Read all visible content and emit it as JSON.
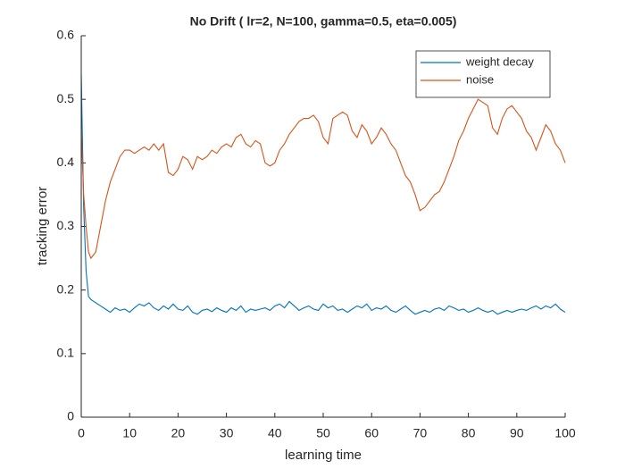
{
  "chart_data": {
    "type": "line",
    "title": "No Drift ( lr=2, N=100, gamma=0.5, eta=0.005)",
    "xlabel": "learning time",
    "ylabel": "tracking error",
    "x": [
      0,
      0.5,
      1,
      1.5,
      2,
      3,
      4,
      5,
      6,
      7,
      8,
      9,
      10,
      11,
      12,
      13,
      14,
      15,
      16,
      17,
      18,
      19,
      20,
      21,
      22,
      23,
      24,
      25,
      26,
      27,
      28,
      29,
      30,
      31,
      32,
      33,
      34,
      35,
      36,
      37,
      38,
      39,
      40,
      41,
      42,
      43,
      44,
      45,
      46,
      47,
      48,
      49,
      50,
      51,
      52,
      53,
      54,
      55,
      56,
      57,
      58,
      59,
      60,
      61,
      62,
      63,
      64,
      65,
      66,
      67,
      68,
      69,
      70,
      71,
      72,
      73,
      74,
      75,
      76,
      77,
      78,
      79,
      80,
      81,
      82,
      83,
      84,
      85,
      86,
      87,
      88,
      89,
      90,
      91,
      92,
      93,
      94,
      95,
      96,
      97,
      98,
      99,
      100
    ],
    "series": [
      {
        "name": "weight decay",
        "color": "#0072bd",
        "values": [
          0.54,
          0.33,
          0.23,
          0.19,
          0.185,
          0.18,
          0.175,
          0.17,
          0.165,
          0.172,
          0.168,
          0.17,
          0.165,
          0.172,
          0.178,
          0.175,
          0.18,
          0.172,
          0.168,
          0.175,
          0.17,
          0.178,
          0.17,
          0.168,
          0.175,
          0.165,
          0.162,
          0.168,
          0.17,
          0.166,
          0.172,
          0.168,
          0.165,
          0.172,
          0.168,
          0.175,
          0.165,
          0.17,
          0.168,
          0.17,
          0.172,
          0.168,
          0.175,
          0.178,
          0.172,
          0.182,
          0.175,
          0.168,
          0.172,
          0.175,
          0.17,
          0.168,
          0.178,
          0.172,
          0.175,
          0.168,
          0.17,
          0.165,
          0.17,
          0.175,
          0.172,
          0.178,
          0.168,
          0.172,
          0.17,
          0.175,
          0.168,
          0.165,
          0.17,
          0.175,
          0.168,
          0.162,
          0.165,
          0.168,
          0.165,
          0.17,
          0.172,
          0.168,
          0.175,
          0.172,
          0.168,
          0.17,
          0.165,
          0.168,
          0.172,
          0.168,
          0.165,
          0.168,
          0.162,
          0.165,
          0.168,
          0.165,
          0.168,
          0.17,
          0.168,
          0.172,
          0.175,
          0.17,
          0.175,
          0.172,
          0.178,
          0.17,
          0.165
        ]
      },
      {
        "name": "noise",
        "color": "#d95319",
        "values": [
          0.45,
          0.35,
          0.3,
          0.26,
          0.25,
          0.26,
          0.3,
          0.34,
          0.37,
          0.39,
          0.41,
          0.42,
          0.42,
          0.415,
          0.42,
          0.425,
          0.42,
          0.43,
          0.42,
          0.43,
          0.385,
          0.38,
          0.39,
          0.41,
          0.405,
          0.39,
          0.41,
          0.405,
          0.41,
          0.42,
          0.415,
          0.425,
          0.43,
          0.425,
          0.44,
          0.445,
          0.43,
          0.425,
          0.435,
          0.43,
          0.4,
          0.395,
          0.4,
          0.42,
          0.43,
          0.445,
          0.455,
          0.465,
          0.47,
          0.47,
          0.475,
          0.465,
          0.44,
          0.43,
          0.47,
          0.475,
          0.48,
          0.475,
          0.45,
          0.44,
          0.46,
          0.45,
          0.43,
          0.44,
          0.455,
          0.445,
          0.43,
          0.42,
          0.4,
          0.38,
          0.37,
          0.35,
          0.325,
          0.33,
          0.34,
          0.35,
          0.355,
          0.37,
          0.39,
          0.41,
          0.435,
          0.45,
          0.47,
          0.485,
          0.5,
          0.495,
          0.49,
          0.455,
          0.445,
          0.47,
          0.485,
          0.49,
          0.48,
          0.47,
          0.45,
          0.44,
          0.42,
          0.44,
          0.46,
          0.45,
          0.43,
          0.42,
          0.4
        ]
      }
    ],
    "xlim": [
      0,
      100
    ],
    "ylim": [
      0,
      0.6
    ],
    "xticks": [
      0,
      10,
      20,
      30,
      40,
      50,
      60,
      70,
      80,
      90,
      100
    ],
    "yticks": [
      0,
      0.1,
      0.2,
      0.3,
      0.4,
      0.5,
      0.6
    ],
    "legend": "northeast"
  }
}
